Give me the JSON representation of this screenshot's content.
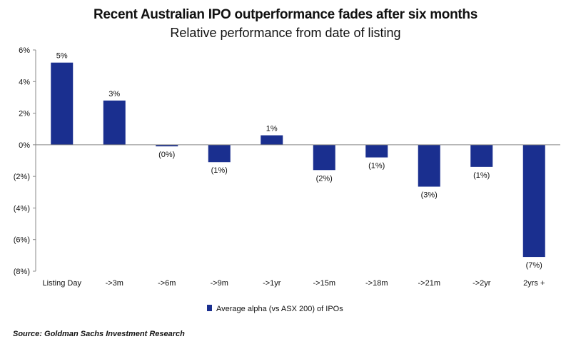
{
  "chart_data": {
    "type": "bar",
    "title": "Recent Australian IPO outperformance fades after six months",
    "subtitle": "Relative performance from date of listing",
    "categories": [
      "Listing Day",
      "->3m",
      "->6m",
      "->9m",
      "->1yr",
      "->15m",
      "->18m",
      "->21m",
      "->2yr",
      "2yrs +"
    ],
    "series": [
      {
        "name": "Average alpha (vs ASX 200) of IPOs",
        "values": [
          5.2,
          2.8,
          -0.1,
          -1.1,
          0.6,
          -1.6,
          -0.8,
          -2.65,
          -1.4,
          -7.1
        ],
        "labels": [
          "5%",
          "3%",
          "(0%)",
          "(1%)",
          "1%",
          "(2%)",
          "(1%)",
          "(3%)",
          "(1%)",
          "(7%)"
        ],
        "color": "#1a2f8f"
      }
    ],
    "ylim": [
      -8,
      6
    ],
    "yticks": [
      6,
      4,
      2,
      0,
      -2,
      -4,
      -6,
      -8
    ],
    "ytick_labels": [
      "6%",
      "4%",
      "2%",
      "0%",
      "(2%)",
      "(4%)",
      "(6%)",
      "(8%)"
    ],
    "legend_position": "bottom-center",
    "grid": false
  },
  "source": "Source: Goldman Sachs Investment Research"
}
